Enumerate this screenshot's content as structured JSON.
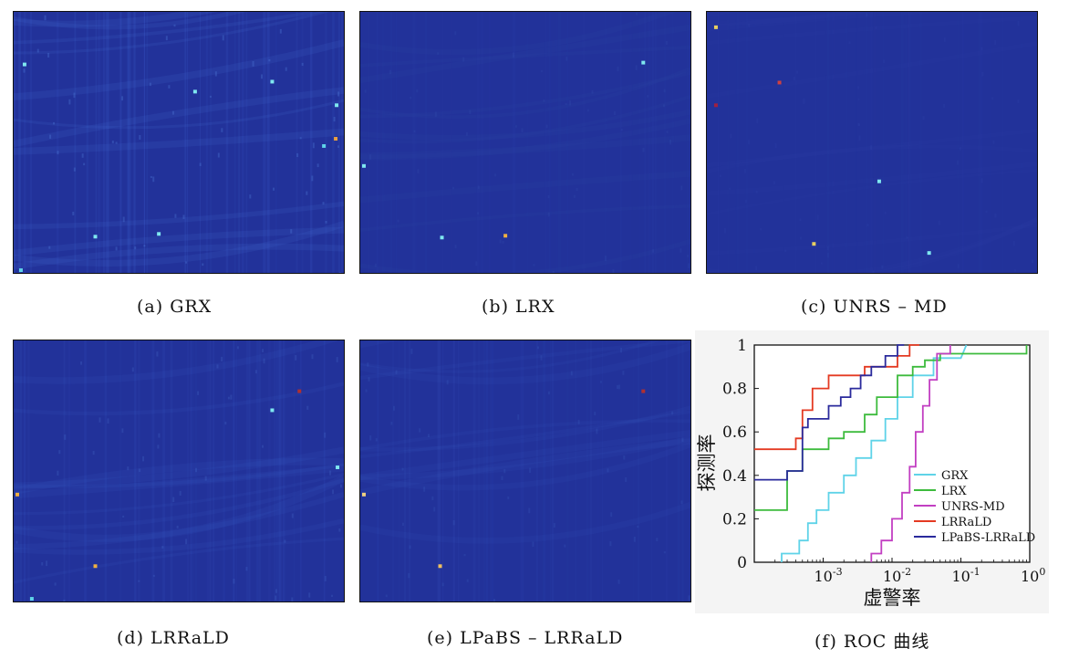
{
  "captions": {
    "a": "(a) GRX",
    "b": "(b) LRX",
    "c": "(c) UNRS – MD",
    "d": "(d) LRRaLD",
    "e": "(e) LPaBS – LRRaLD",
    "f": "(f) ROC 曲线"
  },
  "colors": {
    "map_bg": "#22329a",
    "GRX": "#5fd3e8",
    "LRX": "#3dbb3d",
    "UNRS-MD": "#c23fc2",
    "LRRaLD": "#e43a22",
    "LPaBS-LRRaLD": "#2a2a9c"
  },
  "chart_data": {
    "type": "line",
    "title": "",
    "xlabel": "虚警率",
    "ylabel": "探测率",
    "xscale": "log",
    "xlim": [
      0.0001,
      1
    ],
    "ylim": [
      0,
      1
    ],
    "xtick_labels": [
      "10^-3",
      "10^-2",
      "10^-1",
      "10^0"
    ],
    "ytick_labels": [
      "0",
      "0.2",
      "0.4",
      "0.6",
      "0.8",
      "1"
    ],
    "grid": false,
    "legend_position": "lower-right",
    "series": [
      {
        "name": "GRX",
        "x": [
          0.00025,
          0.00025,
          0.00045,
          0.00045,
          0.0006,
          0.0006,
          0.0008,
          0.0008,
          0.0012,
          0.0012,
          0.002,
          0.002,
          0.003,
          0.003,
          0.005,
          0.005,
          0.008,
          0.008,
          0.012,
          0.012,
          0.02,
          0.02,
          0.04,
          0.04,
          0.1,
          0.12
        ],
        "y": [
          0,
          0.04,
          0.04,
          0.1,
          0.1,
          0.18,
          0.18,
          0.24,
          0.24,
          0.32,
          0.32,
          0.4,
          0.4,
          0.48,
          0.48,
          0.56,
          0.56,
          0.66,
          0.66,
          0.76,
          0.76,
          0.86,
          0.86,
          0.94,
          0.94,
          1
        ]
      },
      {
        "name": "LRX",
        "x": [
          0.0001,
          0.0003,
          0.0003,
          0.0005,
          0.0005,
          0.0012,
          0.0012,
          0.002,
          0.002,
          0.004,
          0.004,
          0.006,
          0.006,
          0.012,
          0.012,
          0.02,
          0.02,
          0.03,
          0.03,
          0.05,
          0.05,
          0.9,
          0.9
        ],
        "y": [
          0.24,
          0.24,
          0.42,
          0.42,
          0.52,
          0.52,
          0.57,
          0.57,
          0.6,
          0.6,
          0.68,
          0.68,
          0.76,
          0.76,
          0.86,
          0.86,
          0.9,
          0.9,
          0.93,
          0.93,
          0.96,
          0.96,
          1
        ]
      },
      {
        "name": "UNRS-MD",
        "x": [
          0.005,
          0.005,
          0.007,
          0.007,
          0.01,
          0.01,
          0.014,
          0.014,
          0.018,
          0.018,
          0.022,
          0.022,
          0.028,
          0.028,
          0.035,
          0.035,
          0.045,
          0.045,
          0.07,
          0.07
        ],
        "y": [
          0,
          0.04,
          0.04,
          0.1,
          0.1,
          0.2,
          0.2,
          0.32,
          0.32,
          0.44,
          0.44,
          0.6,
          0.6,
          0.72,
          0.72,
          0.84,
          0.84,
          0.96,
          0.96,
          1
        ]
      },
      {
        "name": "LRRaLD",
        "x": [
          0.0001,
          0.0004,
          0.0004,
          0.0005,
          0.0005,
          0.0007,
          0.0007,
          0.0012,
          0.0012,
          0.004,
          0.004,
          0.012,
          0.012,
          0.018,
          0.018,
          0.025
        ],
        "y": [
          0.52,
          0.52,
          0.57,
          0.57,
          0.7,
          0.7,
          0.8,
          0.8,
          0.86,
          0.86,
          0.9,
          0.9,
          0.95,
          0.95,
          1,
          1
        ]
      },
      {
        "name": "LPaBS-LRRaLD",
        "x": [
          0.0001,
          0.0003,
          0.0003,
          0.0005,
          0.0005,
          0.0006,
          0.0006,
          0.0012,
          0.0012,
          0.0018,
          0.0018,
          0.0025,
          0.0025,
          0.0035,
          0.0035,
          0.005,
          0.005,
          0.008,
          0.008,
          0.012,
          0.012,
          0.015
        ],
        "y": [
          0.38,
          0.38,
          0.42,
          0.42,
          0.62,
          0.62,
          0.66,
          0.66,
          0.72,
          0.72,
          0.76,
          0.76,
          0.8,
          0.8,
          0.86,
          0.86,
          0.9,
          0.9,
          0.95,
          0.95,
          1,
          1
        ]
      }
    ]
  }
}
